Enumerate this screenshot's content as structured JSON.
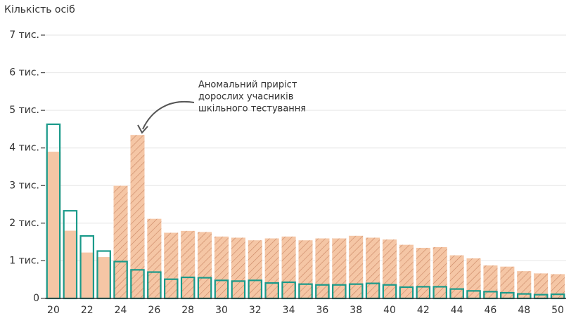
{
  "chart_data": {
    "type": "bar",
    "y_axis_title": "Кількість осіб",
    "annotation": [
      "Аномальний приріст",
      "дорослих учасників",
      "шкільного тестування"
    ],
    "categories": [
      "20",
      null,
      "22",
      null,
      "24",
      null,
      "26",
      null,
      "28",
      null,
      "30",
      null,
      "32",
      null,
      "34",
      null,
      "36",
      null,
      "38",
      null,
      "40",
      null,
      "42",
      null,
      "44",
      null,
      "46",
      null,
      "48",
      null,
      "50"
    ],
    "series": [
      {
        "style": "fill",
        "color": "#f5c6a5",
        "values": [
          3900,
          1800,
          1220,
          1100,
          null,
          null,
          null,
          null,
          null,
          null,
          null,
          null,
          null,
          null,
          null,
          null,
          null,
          null,
          null,
          null,
          null,
          null,
          null,
          null,
          null,
          null,
          null,
          null,
          null,
          null,
          null
        ]
      },
      {
        "style": "hatch",
        "color": "#f5c6a5",
        "values": [
          null,
          null,
          null,
          null,
          3000,
          4350,
          2120,
          1750,
          1800,
          1770,
          1650,
          1620,
          1550,
          1600,
          1650,
          1550,
          1600,
          1600,
          1670,
          1620,
          1570,
          1430,
          1350,
          1370,
          1150,
          1070,
          880,
          850,
          730,
          670,
          650
        ]
      },
      {
        "style": "outline",
        "color": "#1a9a8a",
        "values": [
          4650,
          2350,
          1680,
          1280,
          1000,
          780,
          720,
          530,
          580,
          570,
          500,
          480,
          500,
          430,
          450,
          400,
          380,
          380,
          400,
          420,
          380,
          320,
          330,
          330,
          270,
          220,
          200,
          170,
          140,
          120,
          130
        ]
      }
    ],
    "ylim": [
      0,
      7000
    ],
    "yticks": [
      {
        "value": 0,
        "label": "0"
      },
      {
        "value": 1000,
        "label": "1 тис."
      },
      {
        "value": 2000,
        "label": "2 тис."
      },
      {
        "value": 3000,
        "label": "3 тис."
      },
      {
        "value": 4000,
        "label": "4 тис."
      },
      {
        "value": 5000,
        "label": "5 тис."
      },
      {
        "value": 6000,
        "label": "6 тис."
      },
      {
        "value": 7000,
        "label": "7 тис."
      }
    ],
    "grid": true
  }
}
